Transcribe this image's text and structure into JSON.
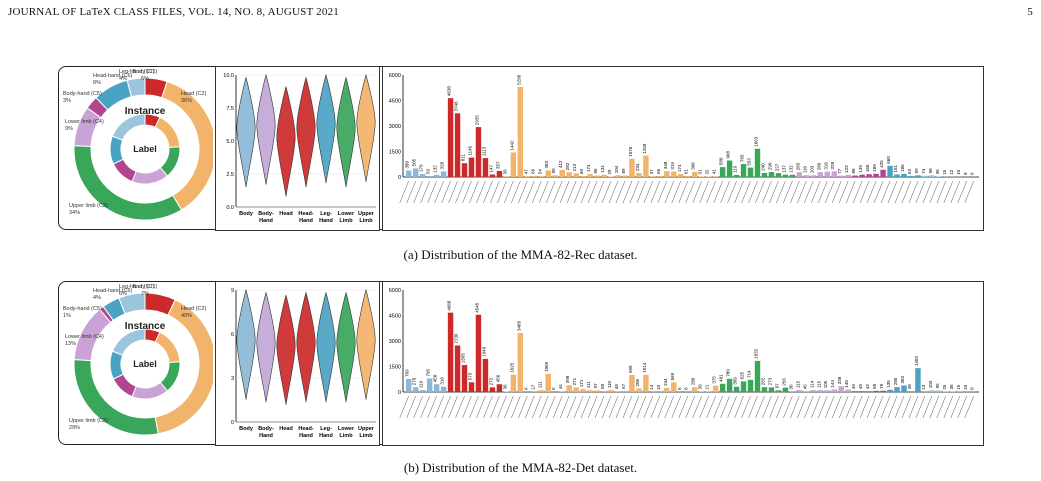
{
  "header": {
    "journal": "JOURNAL OF LaTeX CLASS FILES, VOL. 14, NO. 8, AUGUST 2021",
    "page": "5"
  },
  "figures": [
    {
      "caption": "(a) Distribution of the MMA-82-Rec dataset.",
      "donut": {
        "instance_label": "Instance",
        "inner_label": "Label",
        "classes": [
          {
            "name": "Body (C1)",
            "pct": "5%",
            "color": "#cc2a2a"
          },
          {
            "name": "Head (C2)",
            "pct": "36%",
            "color": "#f2b36b"
          },
          {
            "name": "Upper limb (C3)",
            "pct": "34%",
            "color": "#3aa65a"
          },
          {
            "name": "Lower limb (C4)",
            "pct": "9%",
            "color": "#c9a3d6"
          },
          {
            "name": "Body-hand (C5)",
            "pct": "3%",
            "color": "#b1468f"
          },
          {
            "name": "Head-hand (C6)",
            "pct": "8%",
            "color": "#4aa3c4"
          },
          {
            "name": "Leg-hand (C7)",
            "pct": "4%",
            "color": "#9bc4dd"
          }
        ]
      }
    },
    {
      "caption": "(b) Distribution of the MMA-82-Det dataset.",
      "donut": {
        "instance_label": "Instance",
        "inner_label": "Label",
        "classes": [
          {
            "name": "Body (C1)",
            "pct": "7%",
            "color": "#cc2a2a"
          },
          {
            "name": "Head (C2)",
            "pct": "40%",
            "color": "#f2b36b"
          },
          {
            "name": "Upper limb (C3)",
            "pct": "29%",
            "color": "#3aa65a"
          },
          {
            "name": "Lower limb (C4)",
            "pct": "13%",
            "color": "#c9a3d6"
          },
          {
            "name": "Body-hand (C5)",
            "pct": "1%",
            "color": "#b1468f"
          },
          {
            "name": "Head-hand (C6)",
            "pct": "4%",
            "color": "#4aa3c4"
          },
          {
            "name": "Leg-hand (C7)",
            "pct": "6%",
            "color": "#9bc4dd"
          }
        ]
      }
    }
  ],
  "chart_data": [
    {
      "type": "pie",
      "categories": [
        "Body (C1)",
        "Head (C2)",
        "Upper limb (C3)",
        "Lower limb (C4)",
        "Body-hand (C5)",
        "Head-hand (C6)",
        "Leg-hand (C7)"
      ],
      "values": [
        5,
        36,
        34,
        9,
        3,
        8,
        4
      ],
      "colors": [
        "#cc2a2a",
        "#f2b36b",
        "#3aa65a",
        "#c9a3d6",
        "#b1468f",
        "#4aa3c4",
        "#9bc4dd"
      ],
      "inner_ring_values": [
        7,
        17,
        15,
        17,
        12,
        13,
        19
      ]
    },
    {
      "type": "violin",
      "categories": [
        "Body",
        "Body-Hand",
        "Head",
        "Head-Hand",
        "Leg-Hand",
        "Lower Limb",
        "Upper Limb"
      ],
      "ylim": [
        0,
        10
      ],
      "yticks": [
        "0.0",
        "2.5",
        "5.0",
        "7.5",
        "10.0"
      ],
      "medians": [
        6.0,
        6.2,
        5.3,
        6.0,
        6.3,
        6.0,
        6.4
      ],
      "colors": [
        "#8ab8d6",
        "#c3a7d6",
        "#cc2a2a",
        "#cc2a2a",
        "#4aa3c4",
        "#3aa65a",
        "#f2b36b"
      ]
    },
    {
      "type": "bar",
      "ylim": [
        0,
        6000
      ],
      "yticks": [
        "0",
        "1500",
        "3000",
        "4500",
        "6000"
      ],
      "values": [
        380,
        505,
        179,
        59,
        132,
        328,
        4638,
        3746,
        811,
        1146,
        2935,
        1113,
        147,
        357,
        39,
        1442,
        5298,
        47,
        66,
        54,
        383,
        98,
        412,
        282,
        213,
        60,
        174,
        86,
        134,
        29,
        104,
        89,
        1076,
        234,
        1258,
        37,
        66,
        348,
        319,
        174,
        61,
        306,
        31,
        32,
        41,
        580,
        968,
        119,
        765,
        553,
        1663,
        240,
        290,
        227,
        137,
        132,
        283,
        110,
        103,
        289,
        316,
        328,
        77,
        123,
        88,
        139,
        166,
        189,
        425,
        660,
        151,
        186,
        63,
        99,
        74,
        98,
        36,
        15,
        12,
        10,
        8,
        6
      ],
      "colors": [
        "#8ab8d6",
        "#8ab8d6",
        "#8ab8d6",
        "#8ab8d6",
        "#8ab8d6",
        "#8ab8d6",
        "#cc2a2a",
        "#cc2a2a",
        "#cc2a2a",
        "#cc2a2a",
        "#cc2a2a",
        "#cc2a2a",
        "#cc2a2a",
        "#cc2a2a",
        "#f2b36b",
        "#f2b36b",
        "#f2b36b",
        "#f2b36b",
        "#f2b36b",
        "#f2b36b",
        "#f2b36b",
        "#f2b36b",
        "#f2b36b",
        "#f2b36b",
        "#f2b36b",
        "#f2b36b",
        "#f2b36b",
        "#f2b36b",
        "#f2b36b",
        "#f2b36b",
        "#f2b36b",
        "#f2b36b",
        "#f2b36b",
        "#f2b36b",
        "#f2b36b",
        "#f2b36b",
        "#f2b36b",
        "#f2b36b",
        "#f2b36b",
        "#f2b36b",
        "#f2b36b",
        "#f2b36b",
        "#f2b36b",
        "#f2b36b",
        "#f2b36b",
        "#3aa65a",
        "#3aa65a",
        "#3aa65a",
        "#3aa65a",
        "#3aa65a",
        "#3aa65a",
        "#3aa65a",
        "#3aa65a",
        "#3aa65a",
        "#3aa65a",
        "#3aa65a",
        "#c9a3d6",
        "#c9a3d6",
        "#c9a3d6",
        "#c9a3d6",
        "#c9a3d6",
        "#c9a3d6",
        "#c9a3d6",
        "#c9a3d6",
        "#b1468f",
        "#b1468f",
        "#b1468f",
        "#b1468f",
        "#b1468f",
        "#4aa3c4",
        "#4aa3c4",
        "#4aa3c4",
        "#4aa3c4",
        "#4aa3c4",
        "#9bc4dd",
        "#9bc4dd",
        "#9bc4dd",
        "#9bc4dd",
        "#9bc4dd",
        "#9bc4dd",
        "#9bc4dd",
        "#9bc4dd"
      ]
    },
    {
      "type": "pie",
      "categories": [
        "Body (C1)",
        "Head (C2)",
        "Upper limb (C3)",
        "Lower limb (C4)",
        "Body-hand (C5)",
        "Head-hand (C6)",
        "Leg-hand (C7)"
      ],
      "values": [
        7,
        40,
        29,
        13,
        1,
        4,
        6
      ],
      "colors": [
        "#cc2a2a",
        "#f2b36b",
        "#3aa65a",
        "#c9a3d6",
        "#b1468f",
        "#4aa3c4",
        "#9bc4dd"
      ],
      "inner_ring_values": [
        7,
        17,
        15,
        17,
        12,
        13,
        19
      ]
    },
    {
      "type": "violin",
      "categories": [
        "Body",
        "Body-Hand",
        "Head",
        "Head-Hand",
        "Leg-Hand",
        "Lower Limb",
        "Upper Limb"
      ],
      "ylim": [
        0,
        10
      ],
      "yticks": [
        "0",
        "3",
        "6",
        "9"
      ],
      "medians": [
        6.2,
        6.0,
        5.8,
        6.0,
        6.0,
        6.0,
        6.2
      ],
      "colors": [
        "#8ab8d6",
        "#c3a7d6",
        "#cc2a2a",
        "#cc2a2a",
        "#4aa3c4",
        "#3aa65a",
        "#f2b36b"
      ]
    },
    {
      "type": "bar",
      "ylim": [
        0,
        6000
      ],
      "yticks": [
        "0",
        "1500",
        "3000",
        "4500",
        "6000"
      ],
      "values": [
        769,
        279,
        119,
        795,
        458,
        316,
        4668,
        2736,
        1585,
        573,
        4545,
        1949,
        272,
        456,
        36,
        1025,
        3468,
        6,
        17,
        111,
        1069,
        6,
        44,
        398,
        271,
        171,
        111,
        97,
        58,
        110,
        48,
        67,
        999,
        206,
        1014,
        14,
        10,
        244,
        569,
        6,
        6,
        286,
        39,
        21,
        375,
        481,
        780,
        309,
        625,
        714,
        1832,
        282,
        273,
        97,
        256,
        30,
        115,
        45,
        114,
        115,
        105,
        144,
        338,
        140,
        49,
        49,
        43,
        66,
        76,
        135,
        285,
        383,
        48,
        1403,
        13,
        103,
        95,
        25,
        36,
        15,
        10,
        8
      ],
      "colors": [
        "#8ab8d6",
        "#8ab8d6",
        "#8ab8d6",
        "#8ab8d6",
        "#8ab8d6",
        "#8ab8d6",
        "#cc2a2a",
        "#cc2a2a",
        "#cc2a2a",
        "#cc2a2a",
        "#cc2a2a",
        "#cc2a2a",
        "#cc2a2a",
        "#cc2a2a",
        "#f2b36b",
        "#f2b36b",
        "#f2b36b",
        "#f2b36b",
        "#f2b36b",
        "#f2b36b",
        "#f2b36b",
        "#f2b36b",
        "#f2b36b",
        "#f2b36b",
        "#f2b36b",
        "#f2b36b",
        "#f2b36b",
        "#f2b36b",
        "#f2b36b",
        "#f2b36b",
        "#f2b36b",
        "#f2b36b",
        "#f2b36b",
        "#f2b36b",
        "#f2b36b",
        "#f2b36b",
        "#f2b36b",
        "#f2b36b",
        "#f2b36b",
        "#f2b36b",
        "#f2b36b",
        "#f2b36b",
        "#f2b36b",
        "#f2b36b",
        "#f2b36b",
        "#3aa65a",
        "#3aa65a",
        "#3aa65a",
        "#3aa65a",
        "#3aa65a",
        "#3aa65a",
        "#3aa65a",
        "#3aa65a",
        "#3aa65a",
        "#3aa65a",
        "#3aa65a",
        "#c9a3d6",
        "#c9a3d6",
        "#c9a3d6",
        "#c9a3d6",
        "#c9a3d6",
        "#c9a3d6",
        "#c9a3d6",
        "#c9a3d6",
        "#b1468f",
        "#b1468f",
        "#b1468f",
        "#b1468f",
        "#b1468f",
        "#4aa3c4",
        "#4aa3c4",
        "#4aa3c4",
        "#4aa3c4",
        "#4aa3c4",
        "#9bc4dd",
        "#9bc4dd",
        "#9bc4dd",
        "#9bc4dd",
        "#9bc4dd",
        "#9bc4dd",
        "#9bc4dd",
        "#9bc4dd"
      ]
    }
  ]
}
